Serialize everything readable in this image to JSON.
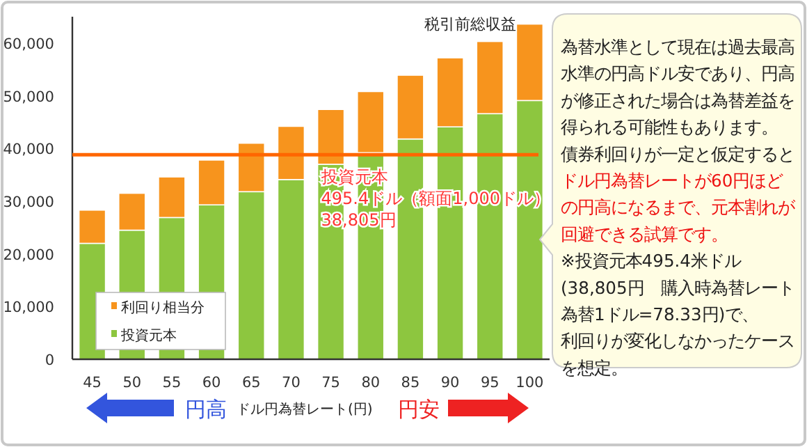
{
  "chart_data": {
    "type": "bar",
    "stacked": true,
    "categories": [
      "45",
      "50",
      "55",
      "60",
      "65",
      "70",
      "75",
      "80",
      "85",
      "90",
      "95",
      "100"
    ],
    "series": [
      {
        "name": "投資元本",
        "color": "#8dc63f",
        "values": [
          22000,
          24500,
          26900,
          29300,
          31800,
          34100,
          37000,
          39200,
          41800,
          44100,
          46600,
          49100
        ]
      },
      {
        "name": "利回り相当分",
        "color": "#f7941d",
        "values": [
          6300,
          7000,
          7700,
          8500,
          9200,
          10100,
          10400,
          11600,
          12100,
          13100,
          13700,
          14500
        ]
      }
    ],
    "ylim": [
      0,
      65000
    ],
    "yticks": [
      0,
      {
        "value": 10000,
        "label": "10,000"
      },
      {
        "value": 20000,
        "label": "20,000"
      },
      {
        "value": 30000,
        "label": "30,000"
      },
      {
        "value": 40000,
        "label": "40,000"
      },
      {
        "value": 50000,
        "label": "50,000"
      },
      {
        "value": 60000,
        "label": "60,000"
      }
    ],
    "ref_lines": [
      {
        "axis": "y",
        "value": 38805,
        "label": "投資元本\n495.4ドル（額面1,000ドル）\n38,805円",
        "color": "#ff6600"
      }
    ],
    "xlabel": "ドル円為替レート(円)",
    "legend": "bottom left",
    "annotations": [
      "税引前総収益",
      "円高",
      "円安",
      "為替水準として現在は過去最高水準の円高ドル安であり、円高が修正された場合は為替差益を得られる可能性もあります。",
      "債券利回りが一定と仮定すると",
      "ドル円為替レートが60円ほどの円高になるまで、元本割れが回避できる試算です。",
      "※投資元本495.4米ドル",
      "(38,805円　購入時為替レート為替1ドル=78.33円)で、",
      "利回りが変化しなかったケースを想定。"
    ]
  }
}
